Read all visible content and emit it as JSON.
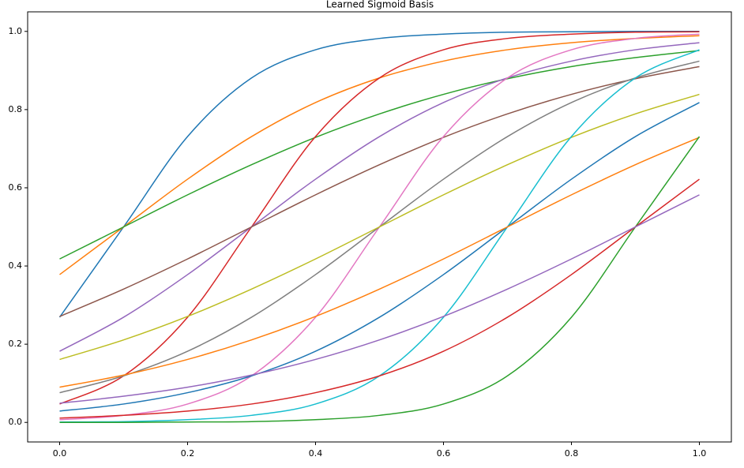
{
  "chart_data": {
    "type": "line",
    "title": "Learned Sigmoid Basis",
    "x": [
      0,
      0.1,
      0.2,
      0.3,
      0.4,
      0.5,
      0.6,
      0.7,
      0.8,
      0.9,
      1.0
    ],
    "series": [
      {
        "color": "#1f77b4",
        "values": [
          0.269,
          0.5,
          0.731,
          0.881,
          0.953,
          0.982,
          0.993,
          0.998,
          0.999,
          1.0,
          1.0
        ]
      },
      {
        "color": "#ff7f0e",
        "values": [
          0.378,
          0.5,
          0.622,
          0.731,
          0.818,
          0.881,
          0.924,
          0.953,
          0.971,
          0.982,
          0.989
        ]
      },
      {
        "color": "#2ca02c",
        "values": [
          0.418,
          0.5,
          0.582,
          0.659,
          0.729,
          0.789,
          0.839,
          0.879,
          0.91,
          0.933,
          0.951
        ]
      },
      {
        "color": "#d62728",
        "values": [
          0.047,
          0.119,
          0.269,
          0.5,
          0.731,
          0.881,
          0.953,
          0.982,
          0.993,
          0.998,
          0.999
        ]
      },
      {
        "color": "#9467bd",
        "values": [
          0.182,
          0.269,
          0.378,
          0.5,
          0.622,
          0.731,
          0.818,
          0.881,
          0.924,
          0.953,
          0.971
        ]
      },
      {
        "color": "#8c564b",
        "values": [
          0.271,
          0.341,
          0.418,
          0.5,
          0.582,
          0.659,
          0.729,
          0.789,
          0.839,
          0.879,
          0.91
        ]
      },
      {
        "color": "#e377c2",
        "values": [
          0.007,
          0.018,
          0.047,
          0.119,
          0.269,
          0.5,
          0.731,
          0.881,
          0.953,
          0.982,
          0.993
        ]
      },
      {
        "color": "#7f7f7f",
        "values": [
          0.076,
          0.119,
          0.182,
          0.269,
          0.378,
          0.5,
          0.622,
          0.731,
          0.818,
          0.881,
          0.924
        ]
      },
      {
        "color": "#bcbd22",
        "values": [
          0.161,
          0.211,
          0.271,
          0.341,
          0.418,
          0.5,
          0.582,
          0.659,
          0.729,
          0.789,
          0.839
        ]
      },
      {
        "color": "#17becf",
        "values": [
          0.001,
          0.002,
          0.007,
          0.018,
          0.047,
          0.119,
          0.269,
          0.5,
          0.731,
          0.881,
          0.953
        ]
      },
      {
        "color": "#1f77b4",
        "values": [
          0.029,
          0.047,
          0.076,
          0.119,
          0.182,
          0.269,
          0.378,
          0.5,
          0.622,
          0.731,
          0.818
        ]
      },
      {
        "color": "#ff7f0e",
        "values": [
          0.09,
          0.121,
          0.161,
          0.211,
          0.271,
          0.341,
          0.418,
          0.5,
          0.582,
          0.659,
          0.729
        ]
      },
      {
        "color": "#2ca02c",
        "values": [
          0.0,
          0.0,
          0.001,
          0.002,
          0.007,
          0.018,
          0.047,
          0.119,
          0.269,
          0.5,
          0.731
        ]
      },
      {
        "color": "#d62728",
        "values": [
          0.011,
          0.018,
          0.029,
          0.047,
          0.076,
          0.119,
          0.182,
          0.269,
          0.378,
          0.5,
          0.622
        ]
      },
      {
        "color": "#9467bd",
        "values": [
          0.049,
          0.067,
          0.09,
          0.121,
          0.161,
          0.211,
          0.271,
          0.341,
          0.418,
          0.5,
          0.582
        ]
      }
    ],
    "xlim": [
      -0.05,
      1.05
    ],
    "xticks": [
      {
        "value": 0,
        "label": "0.0"
      },
      {
        "value": 0.2,
        "label": "0.2"
      },
      {
        "value": 0.4,
        "label": "0.4"
      },
      {
        "value": 0.6,
        "label": "0.6"
      },
      {
        "value": 0.8,
        "label": "0.8"
      },
      {
        "value": 1.0,
        "label": "1.0"
      }
    ],
    "ylim": [
      -0.05,
      1.05
    ],
    "yticks": [
      {
        "value": 0,
        "label": "0.0"
      },
      {
        "value": 0.2,
        "label": "0.2"
      },
      {
        "value": 0.4,
        "label": "0.4"
      },
      {
        "value": 0.6,
        "label": "0.6"
      },
      {
        "value": 0.8,
        "label": "0.8"
      },
      {
        "value": 1.0,
        "label": "1.0"
      }
    ],
    "grid": false
  }
}
